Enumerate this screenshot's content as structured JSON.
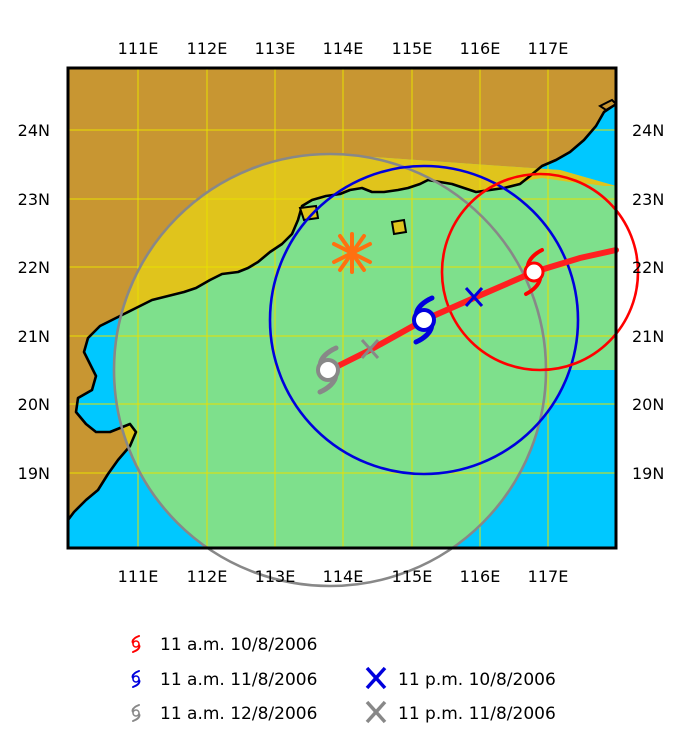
{
  "map": {
    "lon_labels": [
      "111E",
      "112E",
      "113E",
      "114E",
      "115E",
      "116E",
      "117E"
    ],
    "lat_labels": [
      "24N",
      "23N",
      "22N",
      "21N",
      "20N",
      "19N"
    ],
    "colors": {
      "sea": "#00c8ff",
      "land": "#c89632",
      "land_in_zone": "#e0c41c",
      "sea_in_zone": "#7ee08c",
      "grid": "#e8e000",
      "track": "#ff2020",
      "red": "#ff0000",
      "blue": "#0000dd",
      "gray": "#888888",
      "orange": "#ff7010"
    }
  },
  "legend": {
    "items": [
      {
        "symbol": "typhoon-icon",
        "color": "red",
        "label": "11 a.m. 10/8/2006"
      },
      {
        "symbol": "typhoon-icon",
        "color": "blue",
        "label": "11 a.m. 11/8/2006"
      },
      {
        "symbol": "typhoon-icon",
        "color": "gray",
        "label": "11 a.m. 12/8/2006"
      },
      {
        "symbol": "x-mark",
        "color": "blue",
        "label": "11 p.m. 10/8/2006"
      },
      {
        "symbol": "x-mark",
        "color": "gray",
        "label": "11 p.m. 11/8/2006"
      }
    ]
  }
}
